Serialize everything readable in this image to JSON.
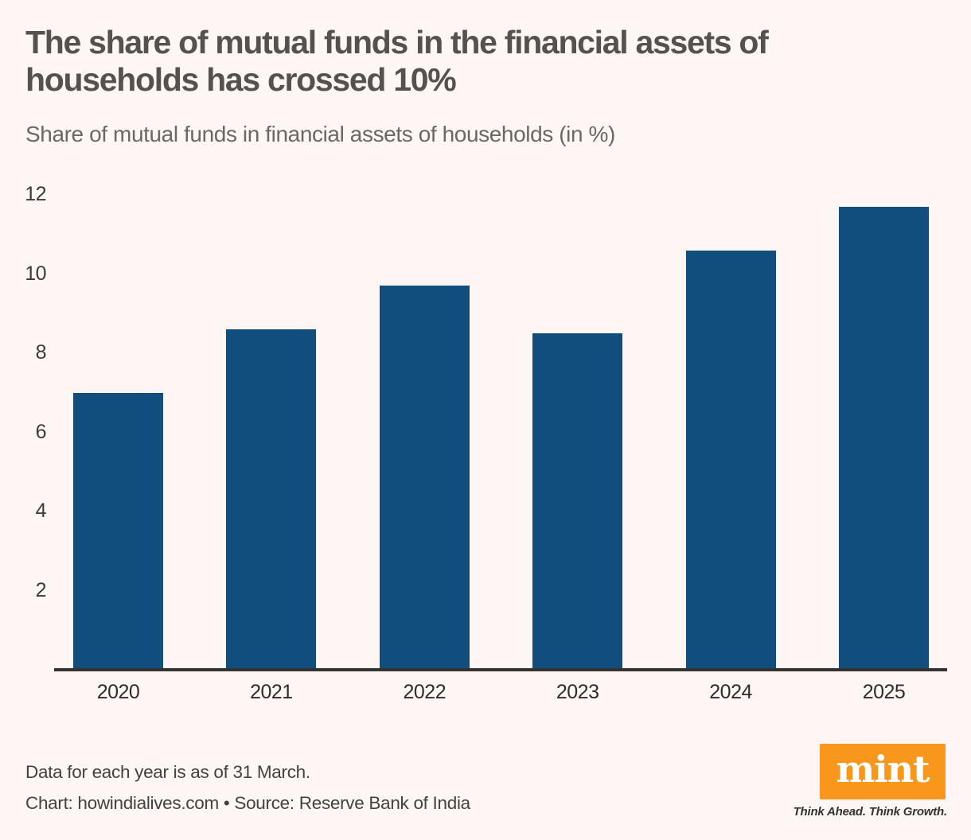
{
  "header": {
    "title": "The share of mutual funds in the financial assets of households has crossed 10%",
    "subtitle": "Share of mutual funds in financial assets of households (in %)"
  },
  "chart_data": {
    "type": "bar",
    "categories": [
      "2020",
      "2021",
      "2022",
      "2023",
      "2024",
      "2025"
    ],
    "values": [
      7.0,
      8.6,
      9.7,
      8.5,
      10.6,
      11.7
    ],
    "title": "Share of mutual funds in financial assets of households (in %)",
    "xlabel": "",
    "ylabel": "",
    "ylim": [
      0,
      12
    ],
    "yticks": [
      2,
      4,
      6,
      8,
      10,
      12
    ],
    "grid": false,
    "legend": "none",
    "bar_color": "#114E7E",
    "axis_color": "#333333",
    "background_color": "#FDF6F4"
  },
  "footer": {
    "note": "Data for each year is as of 31 March.",
    "credit": "Chart: howindialives.com • Source: Reserve Bank of India"
  },
  "logo": {
    "wordmark": "mint",
    "tagline": "Think Ahead. Think Growth.",
    "brand_color": "#F7981D"
  }
}
